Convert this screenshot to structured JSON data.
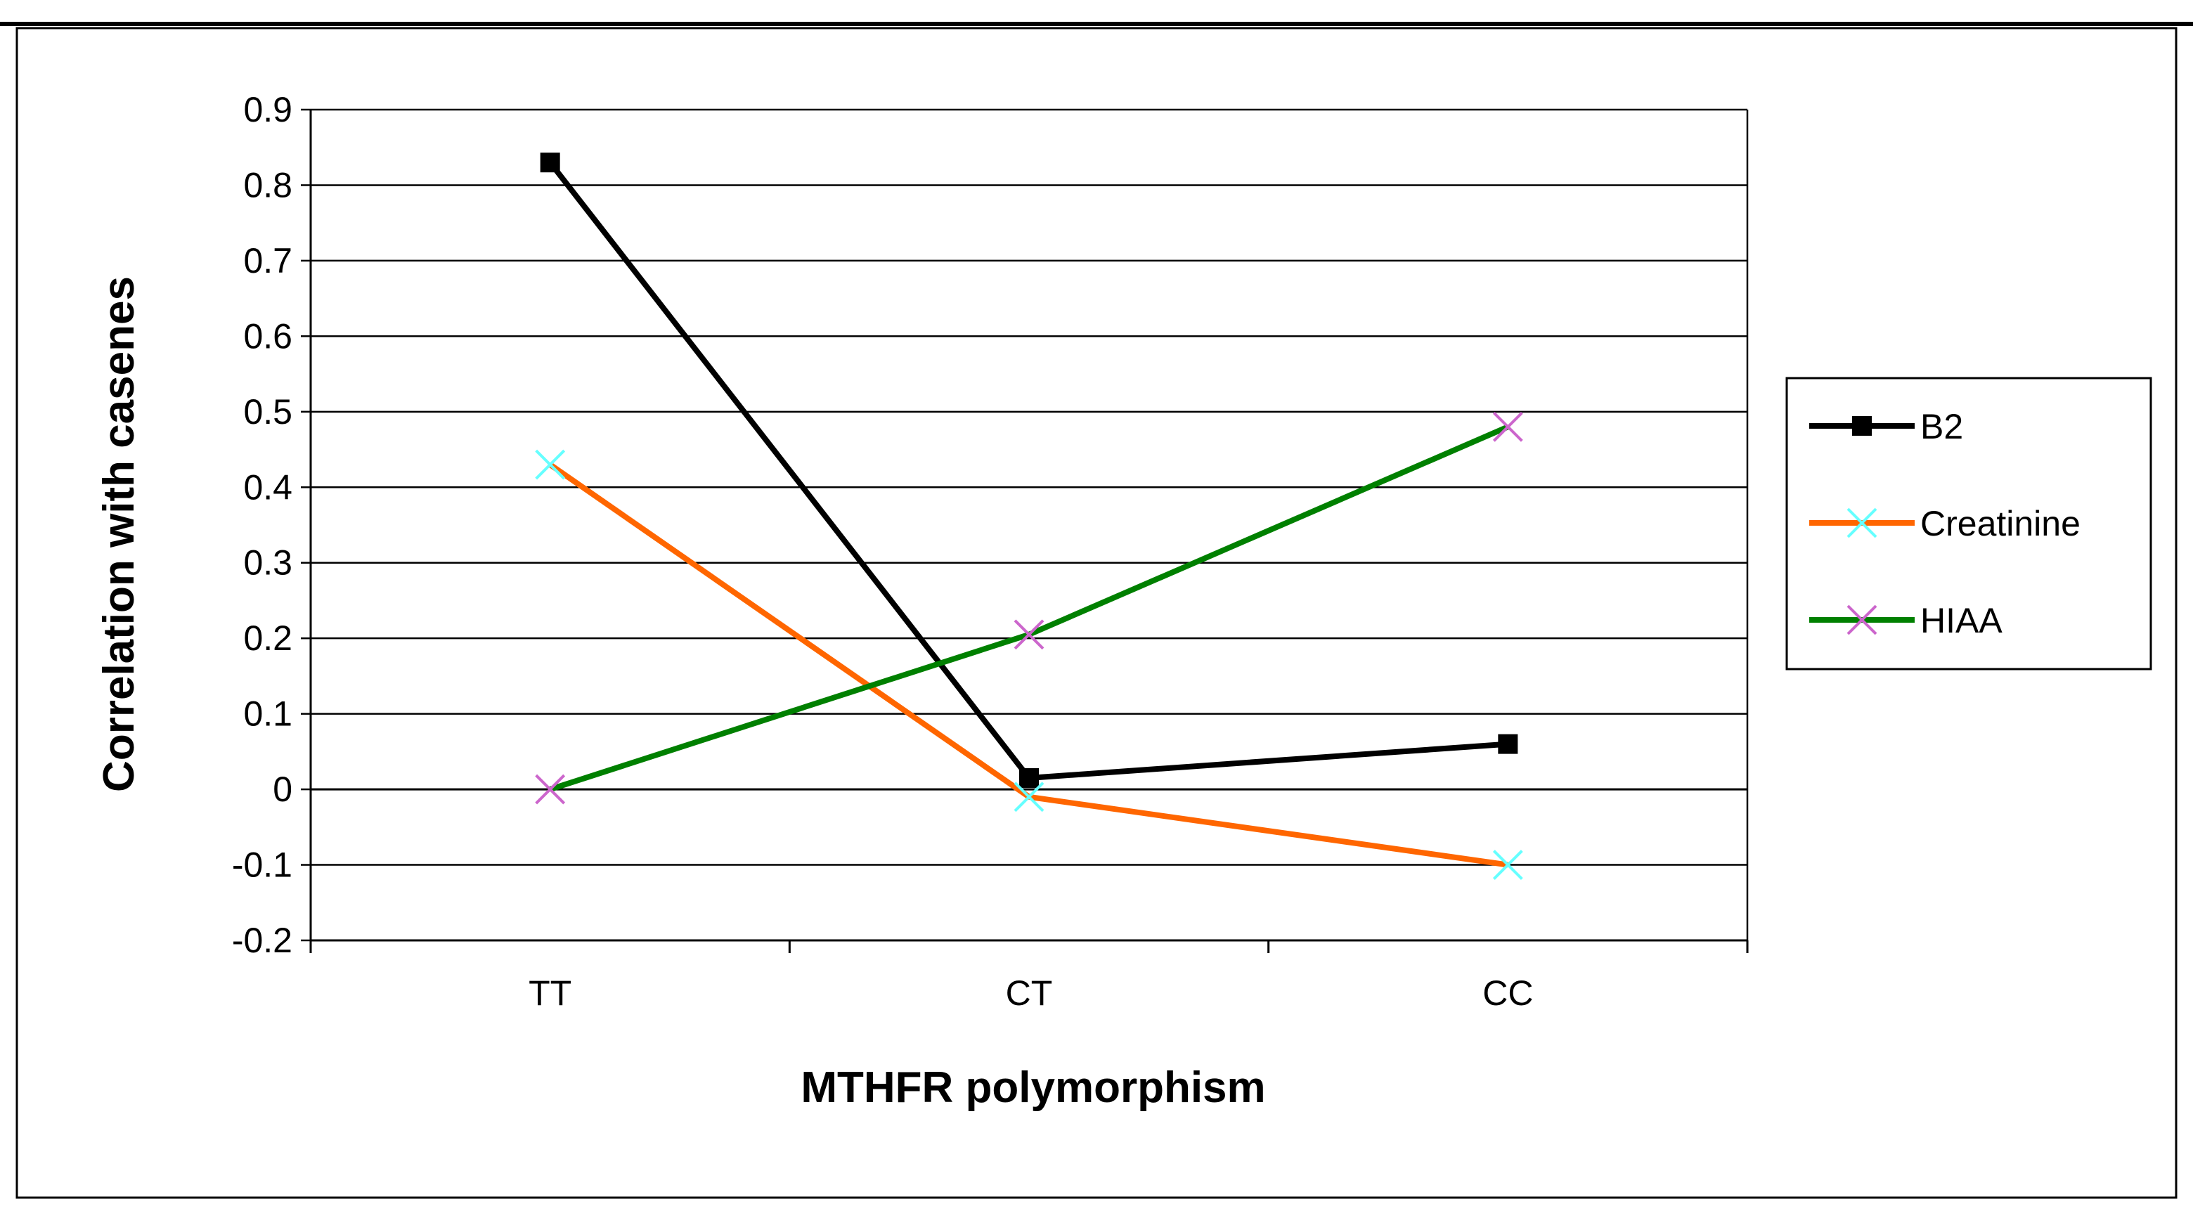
{
  "chart_data": {
    "type": "line",
    "categories": [
      "TT",
      "CT",
      "CC"
    ],
    "series": [
      {
        "name": "B2",
        "color": "#000000",
        "marker": "square",
        "marker_color": "#000000",
        "values": [
          0.83,
          0.015,
          0.06
        ]
      },
      {
        "name": "Creatinine",
        "color": "#ff6600",
        "marker": "x",
        "marker_color": "#66ffff",
        "values": [
          0.43,
          -0.01,
          -0.1
        ]
      },
      {
        "name": "HIAA",
        "color": "#008000",
        "marker": "x",
        "marker_color": "#cc66cc",
        "values": [
          0.0,
          0.205,
          0.48
        ]
      }
    ],
    "xlabel": "MTHFR polymorphism",
    "ylabel": "Correlation with casenes",
    "ylim": [
      -0.2,
      0.9
    ],
    "yticks": [
      "0.9",
      "0.8",
      "0.7",
      "0.6",
      "0.5",
      "0.4",
      "0.3",
      "0.2",
      "0.1",
      "0",
      "-0.1",
      "-0.2"
    ],
    "grid": true,
    "legend_position": "right"
  }
}
